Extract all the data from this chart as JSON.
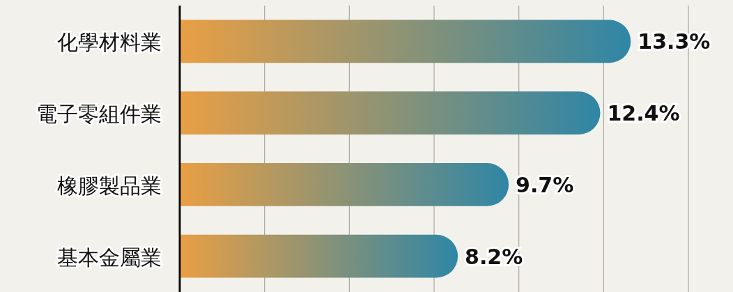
{
  "chart_data": {
    "type": "bar",
    "orientation": "horizontal",
    "categories": [
      "化學材料業",
      "電子零組件業",
      "橡膠製品業",
      "基本金屬業"
    ],
    "values": [
      13.3,
      12.4,
      9.7,
      8.2
    ],
    "value_labels": [
      "13.3%",
      "12.4%",
      "9.7%",
      "8.2%"
    ],
    "color": "#2f86a6",
    "xticks": [
      {
        "value": 2.5,
        "label": null
      },
      {
        "value": 5,
        "label": null
      },
      {
        "value": 7.5,
        "label": null
      },
      {
        "value": 10,
        "label": null
      },
      {
        "value": 12.5,
        "label": null
      },
      {
        "value": 15,
        "label": null
      }
    ],
    "grid": "x"
  }
}
